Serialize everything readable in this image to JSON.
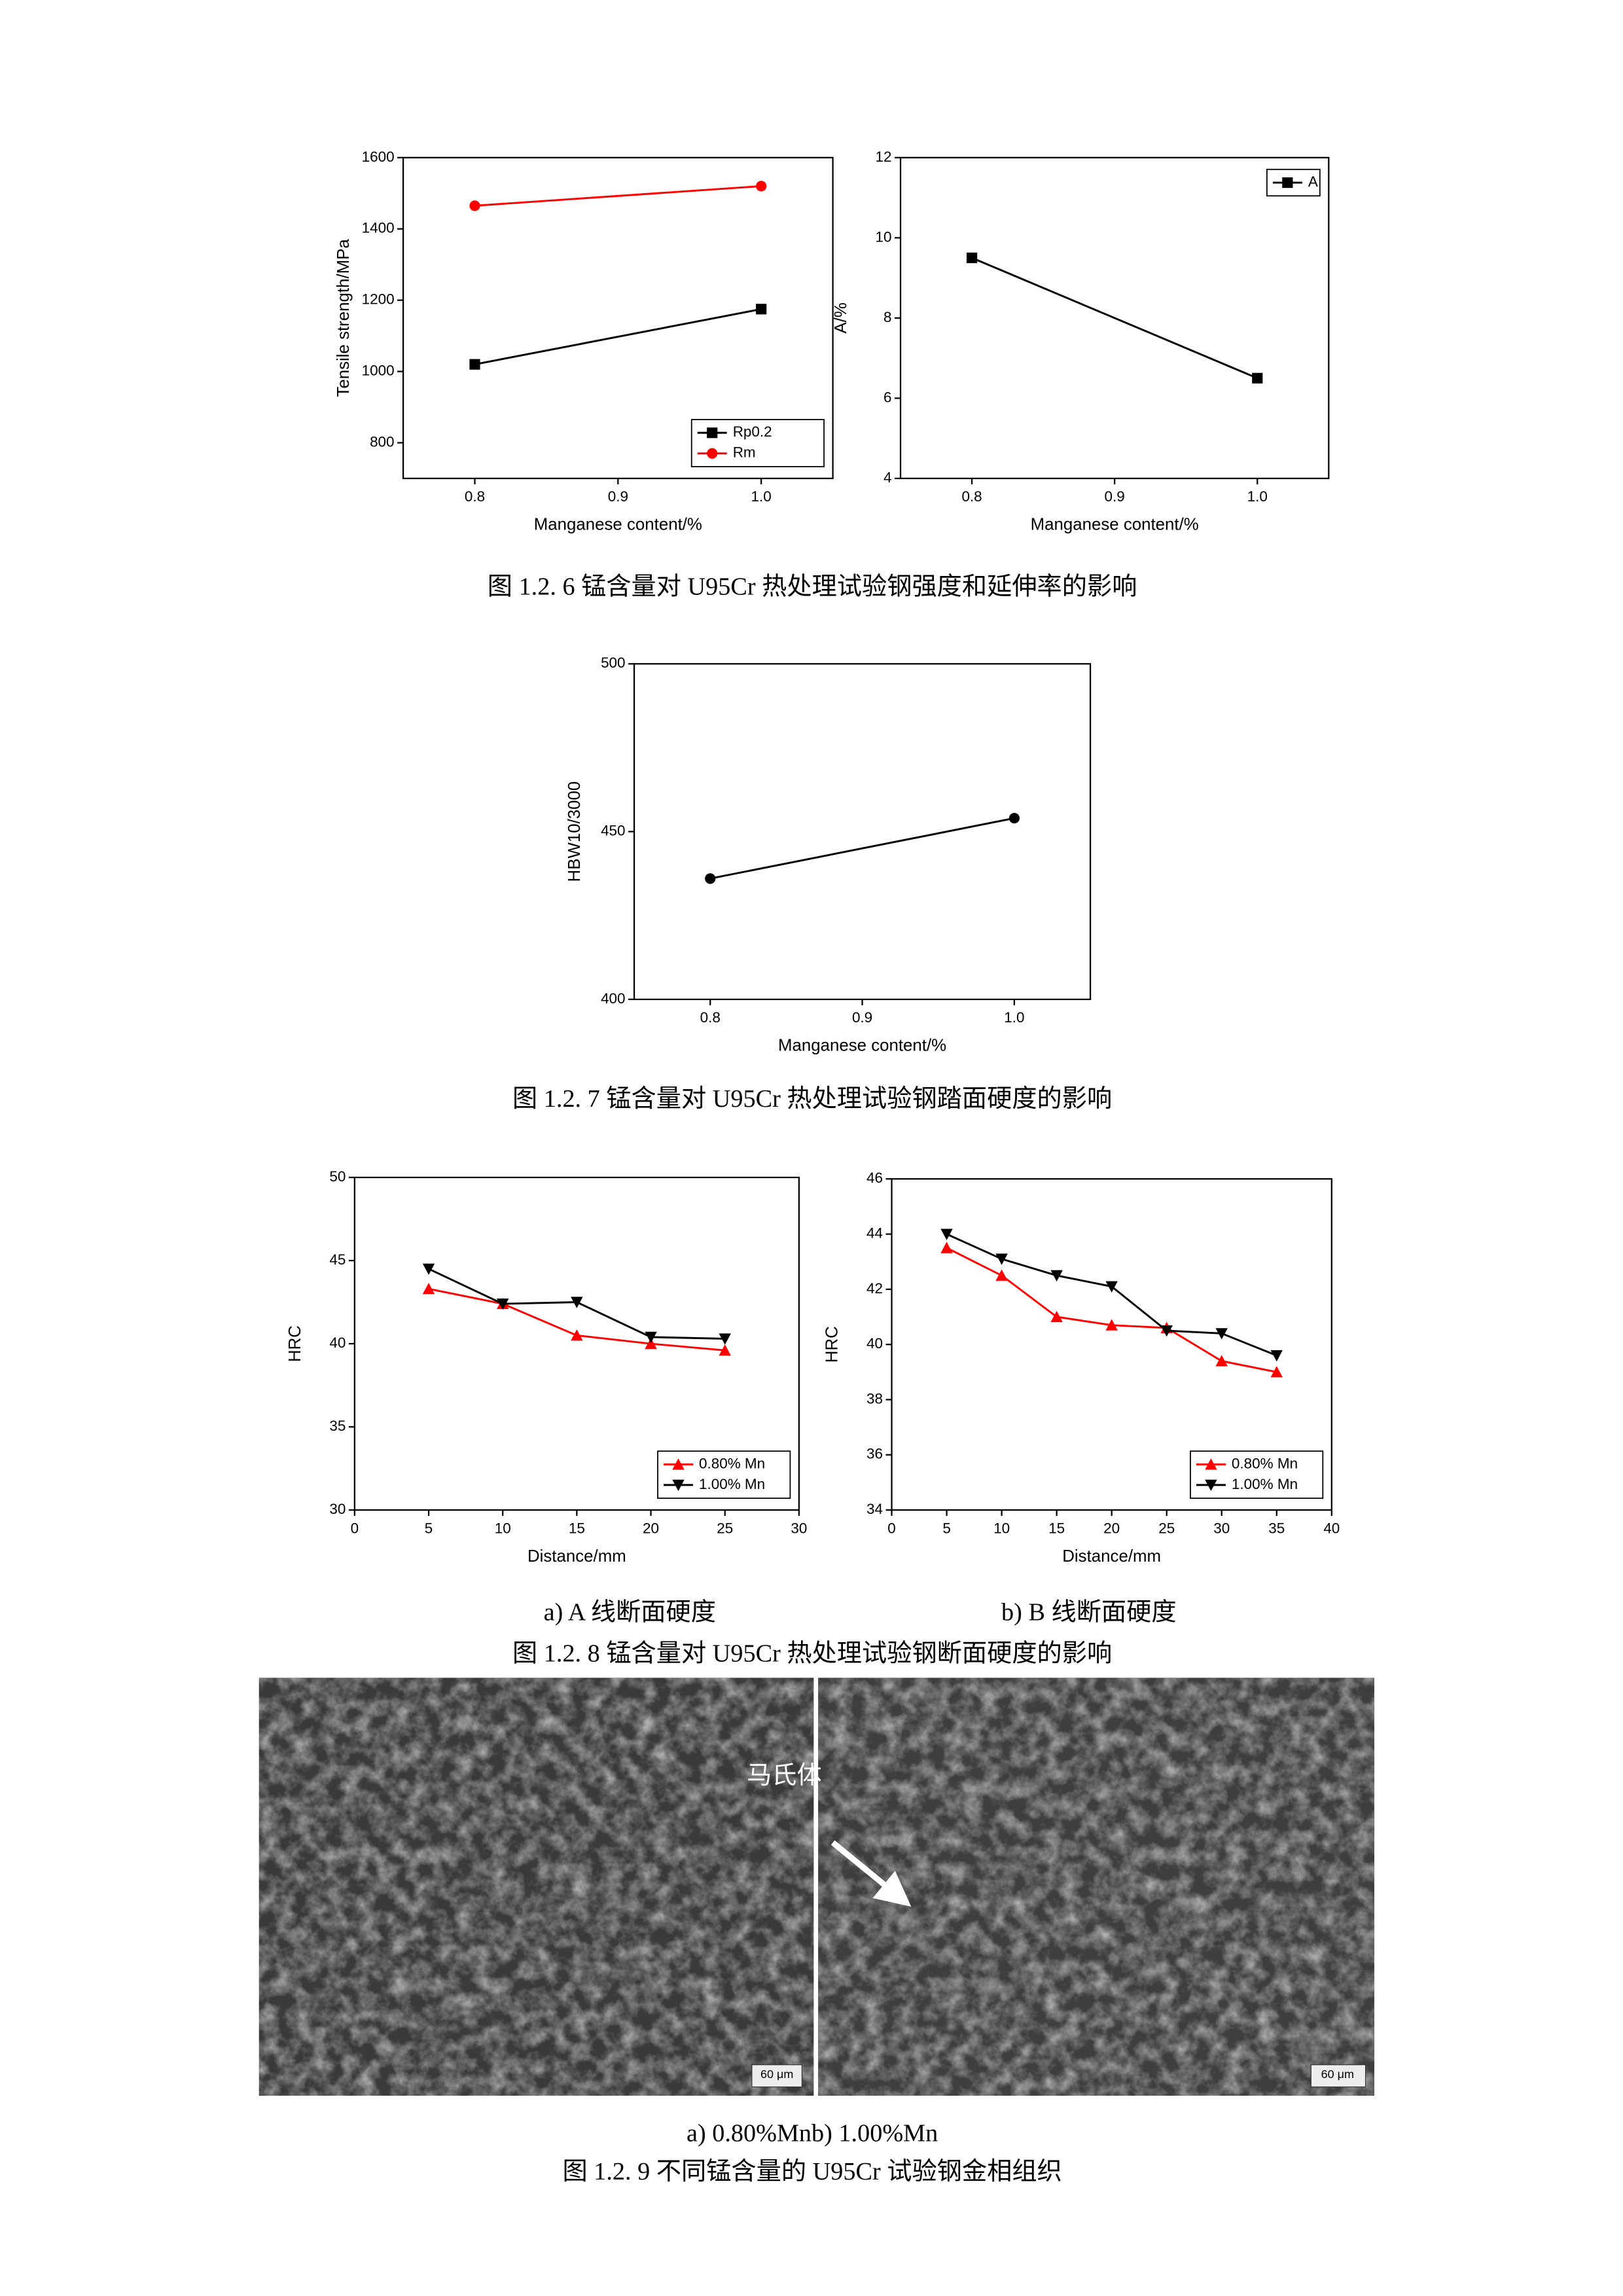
{
  "chart_data": [
    {
      "type": "line",
      "x": [
        0.8,
        1
      ],
      "xlabel": "Manganese content/%",
      "ylabel": "Tensile strength/MPa",
      "xlim": [
        0.75,
        1.05
      ],
      "xticks": [
        0.8,
        0.9,
        {
          "value": 1,
          "label": "1.0"
        }
      ],
      "ylim": [
        700,
        1600
      ],
      "yticks": [
        800,
        1000,
        1200,
        1400,
        1600
      ],
      "legend": "lower right",
      "series": [
        {
          "name": "Rp0.2",
          "color": "#000000",
          "marker": "square",
          "values": [
            1020,
            1175
          ]
        },
        {
          "name": "Rm",
          "color": "#ff0000",
          "marker": "circle",
          "values": [
            1465,
            1520
          ]
        }
      ]
    },
    {
      "type": "line",
      "x": [
        0.8,
        1
      ],
      "xlabel": "Manganese content/%",
      "ylabel": "A/%",
      "xlim": [
        0.75,
        1.05
      ],
      "xticks": [
        0.8,
        0.9,
        {
          "value": 1,
          "label": "1.0"
        }
      ],
      "ylim": [
        4,
        12
      ],
      "yticks": [
        4,
        6,
        8,
        10,
        12
      ],
      "legend": "upper right",
      "series": [
        {
          "name": "A",
          "color": "#000000",
          "marker": "square",
          "values": [
            9.5,
            6.5
          ]
        }
      ]
    },
    {
      "type": "line",
      "x": [
        0.8,
        1
      ],
      "xlabel": "Manganese content/%",
      "ylabel": "HBW10/3000",
      "xlim": [
        0.75,
        1.05
      ],
      "xticks": [
        0.8,
        0.9,
        {
          "value": 1,
          "label": "1.0"
        }
      ],
      "ylim": [
        400,
        500
      ],
      "yticks": [
        400,
        450,
        500
      ],
      "series": [
        {
          "color": "#000000",
          "marker": "circle",
          "values": [
            436,
            454
          ]
        }
      ]
    },
    {
      "type": "line",
      "x": [
        5,
        10,
        15,
        20,
        25
      ],
      "xlabel": "Distance/mm",
      "ylabel": "HRC",
      "xlim": [
        0,
        30
      ],
      "xticks": [
        0,
        5,
        10,
        15,
        20,
        25,
        30
      ],
      "ylim": [
        30,
        50
      ],
      "yticks": [
        30,
        35,
        40,
        45,
        50
      ],
      "legend": "lower right",
      "series": [
        {
          "name": "0.80% Mn",
          "color": "#ff0000",
          "marker": "triangle-up",
          "values": [
            43.3,
            42.4,
            40.5,
            40.0,
            39.6
          ]
        },
        {
          "name": "1.00% Mn",
          "color": "#000000",
          "marker": "triangle-down",
          "values": [
            44.5,
            42.4,
            42.5,
            40.4,
            40.3
          ]
        }
      ]
    },
    {
      "type": "line",
      "x": [
        5,
        10,
        15,
        20,
        25,
        30,
        35
      ],
      "xlabel": "Distance/mm",
      "ylabel": "HRC",
      "xlim": [
        0,
        40
      ],
      "xticks": [
        0,
        5,
        10,
        15,
        20,
        25,
        30,
        35,
        40
      ],
      "ylim": [
        34,
        46
      ],
      "yticks": [
        34,
        36,
        38,
        40,
        42,
        44,
        46
      ],
      "legend": "lower right",
      "series": [
        {
          "name": "0.80% Mn",
          "color": "#ff0000",
          "marker": "triangle-up",
          "values": [
            43.5,
            42.5,
            41.0,
            40.7,
            40.6,
            39.4,
            39.0
          ]
        },
        {
          "name": "1.00% Mn",
          "color": "#000000",
          "marker": "triangle-down",
          "values": [
            44.0,
            43.1,
            42.5,
            42.1,
            40.5,
            40.4,
            39.6
          ]
        }
      ]
    }
  ],
  "figures": [
    {
      "caption": "图 1.2. 6 锰含量对 U95Cr 热处理试验钢强度和延伸率的影响"
    },
    {
      "caption": "图 1.2. 7 锰含量对 U95Cr 热处理试验钢踏面硬度的影响"
    },
    {
      "subcaptions": [
        "a) A 线断面硬度",
        "b) B 线断面硬度"
      ],
      "caption": "图 1.2. 8 锰含量对 U95Cr 热处理试验钢断面硬度的影响"
    },
    {
      "label": "马氏体",
      "scale_bar": "60 μm",
      "subcaption": "a) 0.80%Mnb) 1.00%Mn",
      "caption": "图 1.2. 9 不同锰含量的 U95Cr 试验钢金相组织"
    }
  ]
}
